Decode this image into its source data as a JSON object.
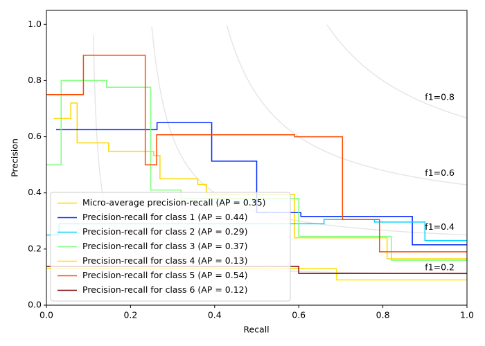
{
  "chart_data": {
    "type": "step",
    "x_label": "Recall",
    "y_label": "Precision",
    "xlim": [
      0,
      1.0
    ],
    "ylim": [
      0,
      1.05
    ],
    "xticks": [
      {
        "value": 0,
        "label": "0.0"
      },
      0.2,
      0.4,
      0.6,
      0.8,
      {
        "value": 1.0,
        "label": "1.0"
      }
    ],
    "yticks": [
      {
        "value": 0,
        "label": "0.0"
      },
      0.2,
      0.4,
      0.6,
      0.8,
      {
        "value": 1.0,
        "label": "1.0"
      }
    ],
    "legend": "lower left",
    "iso_f1": [
      {
        "value": 0.2,
        "label": "f1=0.2"
      },
      {
        "value": 0.4,
        "label": "f1=0.4"
      },
      {
        "value": 0.6,
        "label": "f1=0.6"
      },
      {
        "value": 0.8,
        "label": "f1=0.8"
      }
    ],
    "series": [
      {
        "name": "Micro-average precision-recall (AP = 0.35)",
        "color": "#ffd700",
        "x": [
          0.017,
          0.058,
          0.073,
          0.148,
          0.255,
          0.27,
          0.36,
          0.38,
          0.59,
          0.81,
          1.0
        ],
        "values": [
          0.665,
          0.72,
          0.578,
          0.548,
          0.533,
          0.45,
          0.43,
          0.395,
          0.24,
          0.165,
          0.165
        ]
      },
      {
        "name": "Precision-recall for class 1 (AP = 0.44)",
        "color": "#0028ff",
        "x": [
          0.023,
          0.263,
          0.393,
          0.5,
          0.605,
          0.87,
          1.0
        ],
        "values": [
          0.625,
          0.65,
          0.513,
          0.33,
          0.316,
          0.215,
          0.215
        ]
      },
      {
        "name": "Precision-recall for class 2 (AP = 0.29)",
        "color": "#00d4ff",
        "x": [
          0,
          0.03,
          0.66,
          0.78,
          0.9,
          1.0
        ],
        "values": [
          0.25,
          0.29,
          0.305,
          0.296,
          0.23,
          0.23
        ]
      },
      {
        "name": "Precision-recall for class 3 (AP = 0.37)",
        "color": "#7dff7a",
        "x": [
          0,
          0.035,
          0.143,
          0.248,
          0.32,
          0.6,
          0.82,
          1.0
        ],
        "values": [
          0.5,
          0.8,
          0.776,
          0.41,
          0.38,
          0.245,
          0.16,
          0.16
        ]
      },
      {
        "name": "Precision-recall for class 4 (AP = 0.13)",
        "color": "#ffe400",
        "x": [
          0,
          0.69,
          1.0
        ],
        "values": [
          0.13,
          0.09,
          0.09
        ]
      },
      {
        "name": "Precision-recall for class 5 (AP = 0.54)",
        "color": "#ff4a00",
        "x": [
          0,
          0.088,
          0.235,
          0.262,
          0.59,
          0.704,
          0.792,
          1.0
        ],
        "values": [
          0.75,
          0.89,
          0.5,
          0.607,
          0.6,
          0.305,
          0.19,
          0.19
        ]
      },
      {
        "name": "Precision-recall for class 6 (AP = 0.12)",
        "color": "#800000",
        "x": [
          0,
          0.6,
          1.0
        ],
        "values": [
          0.138,
          0.113,
          0.113
        ]
      }
    ]
  }
}
